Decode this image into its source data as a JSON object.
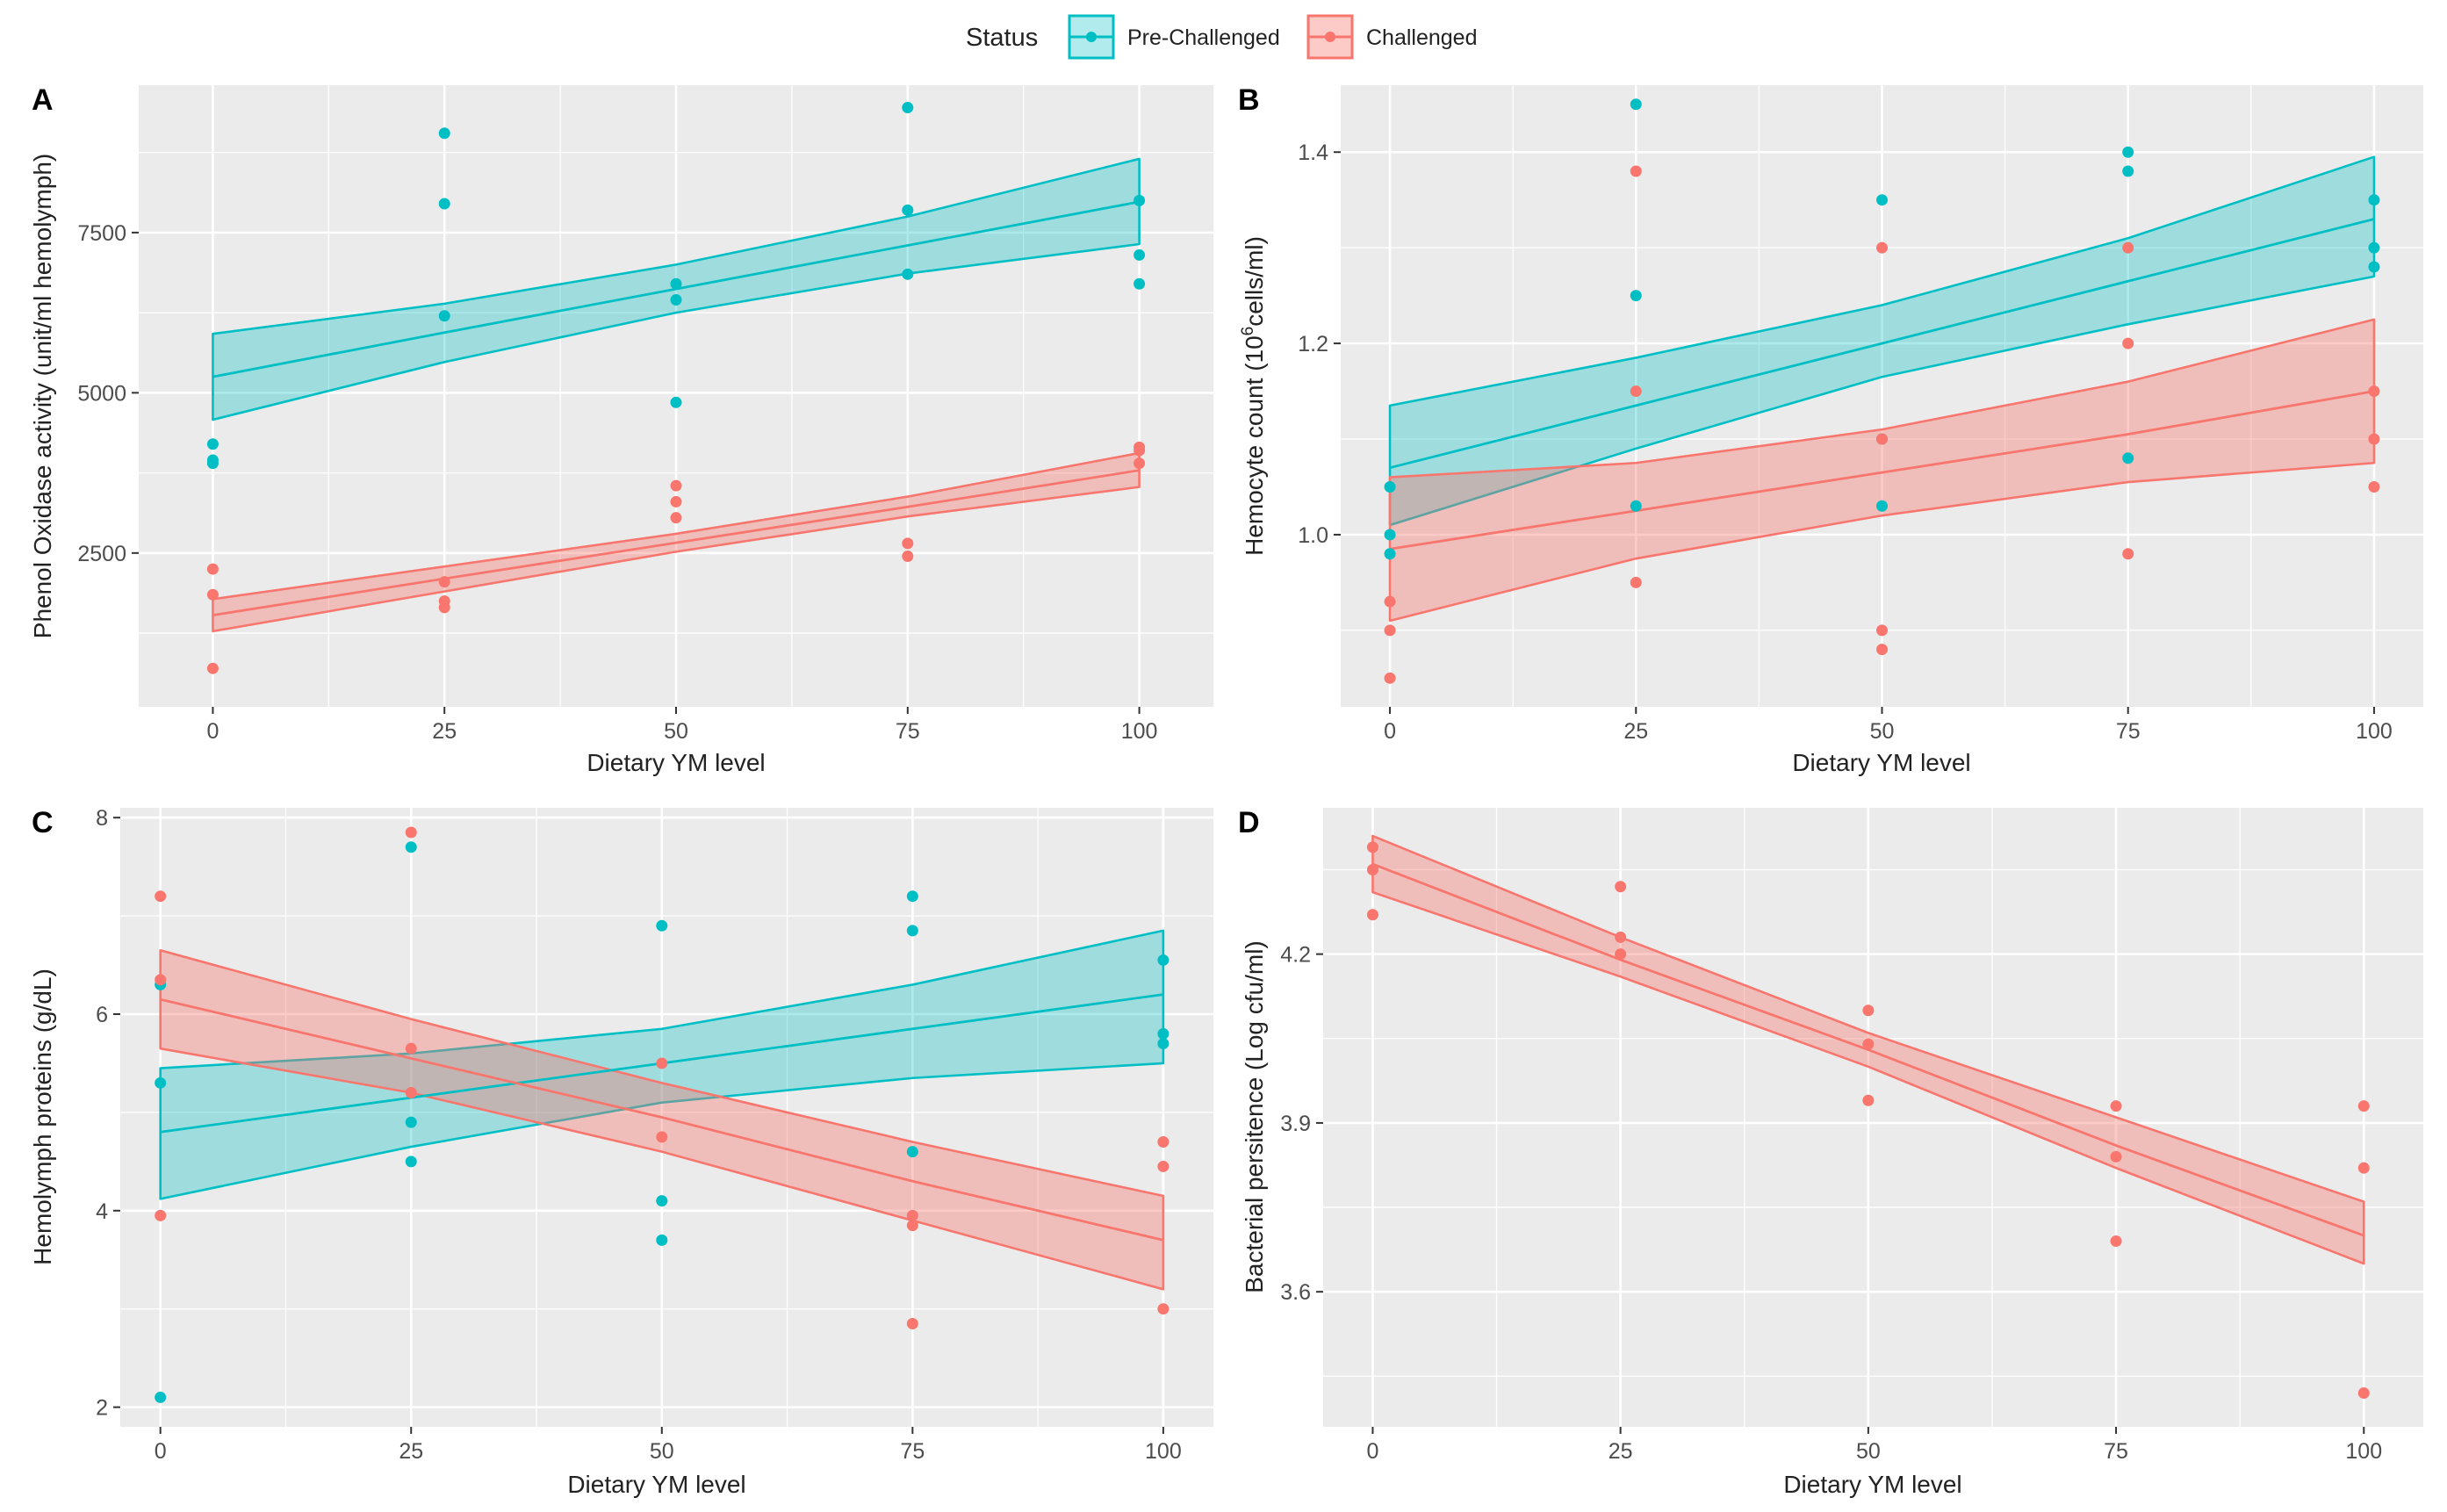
{
  "colors": {
    "pre": "#00BFC4",
    "challenged": "#F8766D",
    "panel_bg": "#EBEBEB",
    "grid": "#FFFFFF",
    "text": "#222222",
    "tick_text": "#4D4D4D"
  },
  "legend": {
    "title": "Status",
    "items": [
      {
        "key": "pre",
        "label": "Pre-Challenged"
      },
      {
        "key": "challenged",
        "label": "Challenged"
      }
    ]
  },
  "chart_data": [
    {
      "panel": "A",
      "type": "scatter",
      "xlabel": "Dietary YM level",
      "ylabel": "Phenol Oxidase activity (unit/ml hemolymph)",
      "xlim": [
        -8,
        108
      ],
      "ylim": [
        100,
        9800
      ],
      "x_ticks": [
        0,
        25,
        50,
        75,
        100
      ],
      "x_tick_labels": [
        "0",
        "25",
        "50",
        "75",
        "100"
      ],
      "y_ticks": [
        2500,
        5000,
        7500
      ],
      "y_tick_labels": [
        "2500",
        "5000",
        "7500"
      ],
      "series": [
        {
          "name": "Pre-Challenged",
          "key": "pre",
          "points": [
            [
              0,
              3900
            ],
            [
              0,
              3950
            ],
            [
              0,
              4200
            ],
            [
              25,
              6200
            ],
            [
              25,
              7950
            ],
            [
              25,
              9050
            ],
            [
              50,
              4850
            ],
            [
              50,
              6450
            ],
            [
              50,
              6700
            ],
            [
              75,
              6850
            ],
            [
              75,
              7850
            ],
            [
              75,
              9450
            ],
            [
              100,
              6700
            ],
            [
              100,
              7150
            ],
            [
              100,
              8000
            ]
          ],
          "fit": {
            "x": [
              0,
              25,
              50,
              75,
              100
            ],
            "y": [
              5250,
              5940,
              6620,
              7300,
              7980
            ],
            "lower": [
              4580,
              5480,
              6250,
              6860,
              7320
            ],
            "upper": [
              5920,
              6390,
              7000,
              7750,
              8650
            ]
          }
        },
        {
          "name": "Challenged",
          "key": "challenged",
          "points": [
            [
              0,
              700
            ],
            [
              0,
              1850
            ],
            [
              0,
              2250
            ],
            [
              25,
              1650
            ],
            [
              25,
              1750
            ],
            [
              25,
              2050
            ],
            [
              50,
              3050
            ],
            [
              50,
              3300
            ],
            [
              50,
              3550
            ],
            [
              75,
              2450
            ],
            [
              75,
              2650
            ],
            [
              100,
              3900
            ],
            [
              100,
              4100
            ],
            [
              100,
              4150
            ]
          ],
          "fit": {
            "x": [
              0,
              25,
              50,
              75,
              100
            ],
            "y": [
              1530,
              2100,
              2660,
              3220,
              3790
            ],
            "lower": [
              1280,
              1900,
              2520,
              3070,
              3530
            ],
            "upper": [
              1780,
              2290,
              2800,
              3380,
              4060
            ]
          }
        }
      ]
    },
    {
      "panel": "B",
      "type": "scatter",
      "xlabel": "Dietary YM level",
      "ylabel_pre": "Hemocyte count (10",
      "ylabel_sup": "6",
      "ylabel_post": "cells/ml)",
      "xlim": [
        -5,
        105
      ],
      "ylim": [
        0.82,
        1.47
      ],
      "x_ticks": [
        0,
        25,
        50,
        75,
        100
      ],
      "x_tick_labels": [
        "0",
        "25",
        "50",
        "75",
        "100"
      ],
      "y_ticks": [
        1.0,
        1.2,
        1.4
      ],
      "y_tick_labels": [
        "1.0",
        "1.2",
        "1.4"
      ],
      "series": [
        {
          "name": "Pre-Challenged",
          "key": "pre",
          "points": [
            [
              0,
              0.98
            ],
            [
              0,
              1.0
            ],
            [
              0,
              1.05
            ],
            [
              25,
              1.03
            ],
            [
              25,
              1.25
            ],
            [
              25,
              1.45
            ],
            [
              50,
              1.03
            ],
            [
              50,
              1.1
            ],
            [
              50,
              1.35
            ],
            [
              75,
              1.08
            ],
            [
              75,
              1.38
            ],
            [
              75,
              1.4
            ],
            [
              100,
              1.28
            ],
            [
              100,
              1.3
            ],
            [
              100,
              1.35
            ]
          ],
          "fit": {
            "x": [
              0,
              25,
              50,
              75,
              100
            ],
            "y": [
              1.07,
              1.135,
              1.2,
              1.265,
              1.33
            ],
            "lower": [
              1.01,
              1.09,
              1.165,
              1.22,
              1.27
            ],
            "upper": [
              1.135,
              1.185,
              1.24,
              1.31,
              1.395
            ]
          }
        },
        {
          "name": "Challenged",
          "key": "challenged",
          "points": [
            [
              0,
              0.85
            ],
            [
              0,
              0.9
            ],
            [
              0,
              0.93
            ],
            [
              25,
              0.95
            ],
            [
              25,
              1.15
            ],
            [
              25,
              1.38
            ],
            [
              50,
              0.88
            ],
            [
              50,
              0.9
            ],
            [
              50,
              1.1
            ],
            [
              50,
              1.3
            ],
            [
              75,
              0.98
            ],
            [
              75,
              1.2
            ],
            [
              75,
              1.3
            ],
            [
              100,
              1.05
            ],
            [
              100,
              1.1
            ],
            [
              100,
              1.15
            ]
          ],
          "fit": {
            "x": [
              0,
              25,
              50,
              75,
              100
            ],
            "y": [
              0.985,
              1.025,
              1.065,
              1.105,
              1.15
            ],
            "lower": [
              0.91,
              0.975,
              1.02,
              1.055,
              1.075
            ],
            "upper": [
              1.06,
              1.075,
              1.11,
              1.16,
              1.225
            ]
          }
        }
      ]
    },
    {
      "panel": "C",
      "type": "scatter",
      "xlabel": "Dietary YM level",
      "ylabel": "Hemolymph proteins (g/dL)",
      "xlim": [
        -4,
        105
      ],
      "ylim": [
        1.8,
        8.1
      ],
      "x_ticks": [
        0,
        25,
        50,
        75,
        100
      ],
      "x_tick_labels": [
        "0",
        "25",
        "50",
        "75",
        "100"
      ],
      "y_ticks": [
        2,
        4,
        6,
        8
      ],
      "y_tick_labels": [
        "2",
        "4",
        "6",
        "8"
      ],
      "series": [
        {
          "name": "Pre-Challenged",
          "key": "pre",
          "points": [
            [
              0,
              2.1
            ],
            [
              0,
              5.3
            ],
            [
              0,
              6.3
            ],
            [
              25,
              4.5
            ],
            [
              25,
              4.9
            ],
            [
              25,
              7.7
            ],
            [
              50,
              3.7
            ],
            [
              50,
              4.1
            ],
            [
              50,
              6.9
            ],
            [
              75,
              4.6
            ],
            [
              75,
              6.85
            ],
            [
              75,
              7.2
            ],
            [
              100,
              5.7
            ],
            [
              100,
              5.8
            ],
            [
              100,
              6.55
            ]
          ],
          "fit": {
            "x": [
              0,
              25,
              50,
              75,
              100
            ],
            "y": [
              4.8,
              5.15,
              5.5,
              5.85,
              6.2
            ],
            "lower": [
              4.12,
              4.65,
              5.1,
              5.35,
              5.5
            ],
            "upper": [
              5.45,
              5.6,
              5.85,
              6.3,
              6.85
            ]
          }
        },
        {
          "name": "Challenged",
          "key": "challenged",
          "points": [
            [
              0,
              3.95
            ],
            [
              0,
              6.35
            ],
            [
              0,
              7.2
            ],
            [
              25,
              5.2
            ],
            [
              25,
              5.65
            ],
            [
              25,
              7.85
            ],
            [
              50,
              4.75
            ],
            [
              50,
              5.5
            ],
            [
              75,
              2.85
            ],
            [
              75,
              3.85
            ],
            [
              75,
              3.95
            ],
            [
              100,
              3.0
            ],
            [
              100,
              4.45
            ],
            [
              100,
              4.7
            ]
          ],
          "fit": {
            "x": [
              0,
              25,
              50,
              75,
              100
            ],
            "y": [
              6.15,
              5.55,
              4.95,
              4.3,
              3.7
            ],
            "lower": [
              5.65,
              5.2,
              4.6,
              3.9,
              3.2
            ],
            "upper": [
              6.65,
              5.95,
              5.3,
              4.7,
              4.15
            ]
          }
        }
      ]
    },
    {
      "panel": "D",
      "type": "scatter",
      "xlabel": "Dietary YM level",
      "ylabel": "Bacterial persitence (Log cfu/ml)",
      "xlim": [
        -5,
        106
      ],
      "ylim": [
        3.36,
        4.46
      ],
      "x_ticks": [
        0,
        25,
        50,
        75,
        100
      ],
      "x_tick_labels": [
        "0",
        "25",
        "50",
        "75",
        "100"
      ],
      "y_ticks": [
        3.6,
        3.9,
        4.2
      ],
      "y_tick_labels": [
        "3.6",
        "3.9",
        "4.2"
      ],
      "series": [
        {
          "name": "Challenged",
          "key": "challenged",
          "points": [
            [
              0,
              4.27
            ],
            [
              0,
              4.35
            ],
            [
              0,
              4.39
            ],
            [
              25,
              4.2
            ],
            [
              25,
              4.23
            ],
            [
              25,
              4.32
            ],
            [
              50,
              3.94
            ],
            [
              50,
              4.04
            ],
            [
              50,
              4.1
            ],
            [
              75,
              3.69
            ],
            [
              75,
              3.84
            ],
            [
              75,
              3.93
            ],
            [
              100,
              3.42
            ],
            [
              100,
              3.82
            ],
            [
              100,
              3.93
            ]
          ],
          "fit": {
            "x": [
              0,
              25,
              50,
              75,
              100
            ],
            "y": [
              4.36,
              4.19,
              4.03,
              3.86,
              3.7
            ],
            "lower": [
              4.31,
              4.16,
              4.0,
              3.82,
              3.65
            ],
            "upper": [
              4.41,
              4.23,
              4.06,
              3.91,
              3.76
            ]
          }
        }
      ]
    }
  ]
}
